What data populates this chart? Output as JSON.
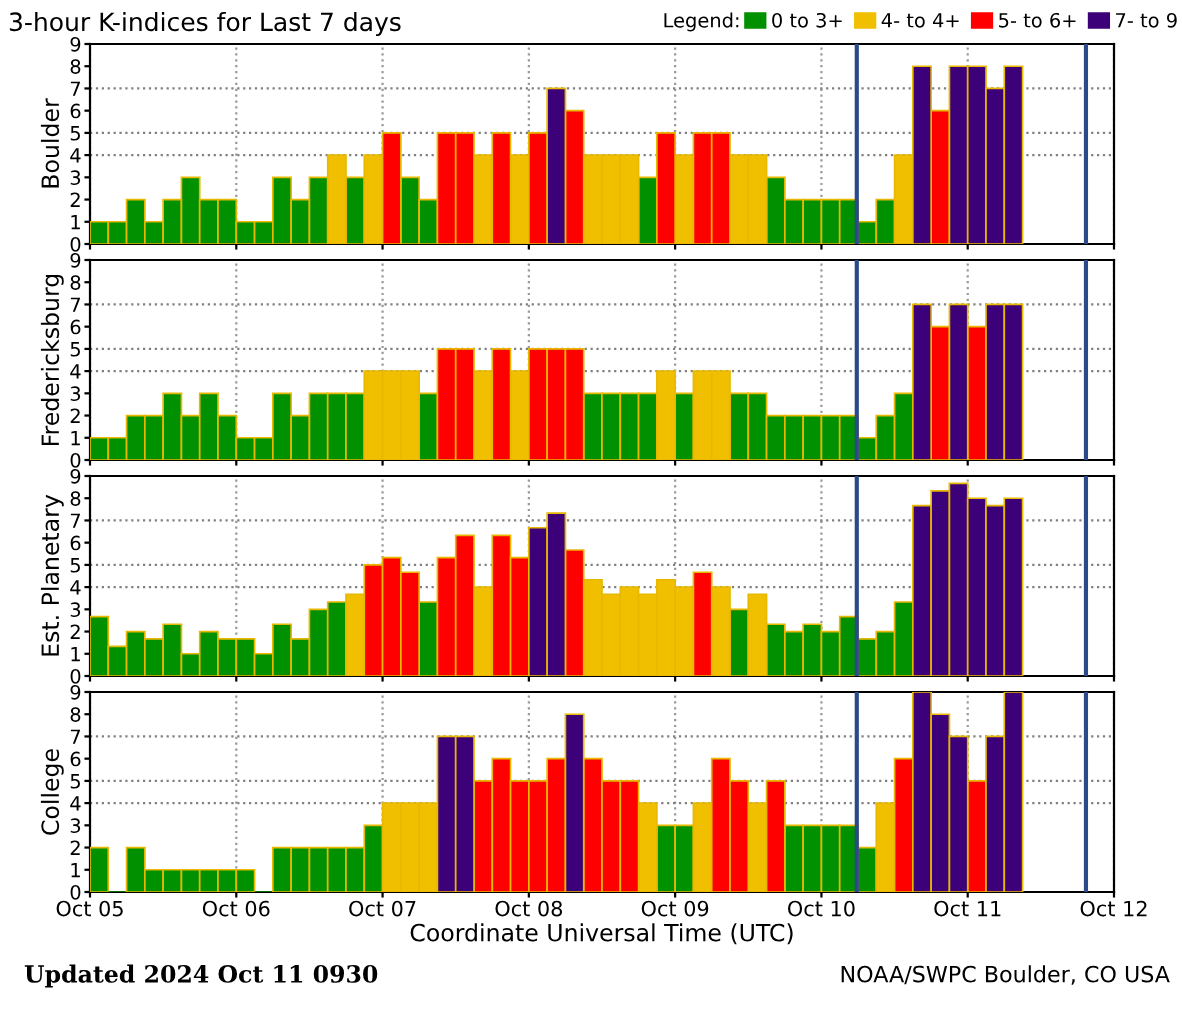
{
  "chart_data": [
    {
      "type": "bar",
      "title": "3-hour K-indices for Last 7 days",
      "ylabel": "Boulder",
      "legend": "top right",
      "legend_title": "Legend:",
      "grid": "x",
      "tick_labels": "y",
      "x": [
        "2024-10-05T01:30",
        "2024-10-05T04:30",
        "2024-10-05T07:30",
        "2024-10-05T10:30",
        "2024-10-05T13:30",
        "2024-10-05T16:30",
        "2024-10-05T19:30",
        "2024-10-05T22:30",
        "2024-10-06T01:30",
        "2024-10-06T04:30",
        "2024-10-06T07:30",
        "2024-10-06T10:30",
        "2024-10-06T13:30",
        "2024-10-06T16:30",
        "2024-10-06T19:30",
        "2024-10-06T22:30",
        "2024-10-07T01:30",
        "2024-10-07T04:30",
        "2024-10-07T07:30",
        "2024-10-07T10:30",
        "2024-10-07T13:30",
        "2024-10-07T16:30",
        "2024-10-07T19:30",
        "2024-10-07T22:30",
        "2024-10-08T01:30",
        "2024-10-08T04:30",
        "2024-10-08T07:30",
        "2024-10-08T10:30",
        "2024-10-08T13:30",
        "2024-10-08T16:30",
        "2024-10-08T19:30",
        "2024-10-08T22:30",
        "2024-10-09T01:30",
        "2024-10-09T04:30",
        "2024-10-09T07:30",
        "2024-10-09T10:30",
        "2024-10-09T13:30",
        "2024-10-09T16:30",
        "2024-10-09T19:30",
        "2024-10-09T22:30",
        "2024-10-10T01:30",
        "2024-10-10T04:30",
        "2024-10-10T07:30",
        "2024-10-10T10:30",
        "2024-10-10T13:30",
        "2024-10-10T16:30",
        "2024-10-10T19:30",
        "2024-10-10T22:30",
        "2024-10-11T01:30",
        "2024-10-11T04:30",
        "2024-10-11T07:30"
      ],
      "xlim": [
        "2024-10-05",
        "2024-10-12"
      ],
      "xticks": [
        {
          "value": "2024-10-05",
          "label": null
        },
        {
          "value": "2024-10-06",
          "label": null
        },
        {
          "value": "2024-10-07",
          "label": null
        },
        {
          "value": "2024-10-08",
          "label": null
        },
        {
          "value": "2024-10-09",
          "label": null
        },
        {
          "value": "2024-10-10",
          "label": null
        },
        {
          "value": "2024-10-11",
          "label": null
        },
        {
          "value": "2024-10-12",
          "label": null
        }
      ],
      "ylim": [
        0,
        9
      ],
      "yticks": [
        0,
        1,
        2,
        3,
        4,
        5,
        6,
        7,
        8,
        9
      ],
      "ref_lines": [
        {
          "axis": "y",
          "value": 4,
          "color": "#808080",
          "line_style": "dotted"
        },
        {
          "axis": "y",
          "value": 5,
          "color": "#808080",
          "line_style": "dotted"
        },
        {
          "axis": "y",
          "value": 7,
          "color": "#808080",
          "line_style": "dotted"
        },
        {
          "axis": "x",
          "value": "2024-10-10T05:48",
          "color": "#2b4a8a",
          "line_style": "solid"
        },
        {
          "axis": "x",
          "value": "2024-10-11T19:24",
          "color": "#2b4a8a",
          "line_style": "solid"
        }
      ],
      "series": [
        {
          "name": "0 to 3+",
          "color": "#009000",
          "values": [
            1,
            1,
            2,
            1,
            2,
            3,
            2,
            2,
            1,
            1,
            3,
            2,
            3,
            null,
            3,
            null,
            null,
            3,
            2,
            null,
            null,
            null,
            null,
            null,
            null,
            null,
            null,
            null,
            null,
            null,
            3,
            null,
            null,
            null,
            null,
            null,
            null,
            3,
            2,
            2,
            2,
            2,
            1,
            2,
            null,
            null,
            null,
            null,
            null,
            null,
            null
          ]
        },
        {
          "name": "4- to 4+",
          "color": "#f0c000",
          "values": [
            null,
            null,
            null,
            null,
            null,
            null,
            null,
            null,
            null,
            null,
            null,
            null,
            null,
            4,
            null,
            4,
            null,
            null,
            null,
            null,
            null,
            4,
            null,
            4,
            null,
            null,
            null,
            4,
            4,
            4,
            null,
            null,
            4,
            null,
            null,
            4,
            4,
            null,
            null,
            null,
            null,
            null,
            null,
            null,
            4,
            null,
            null,
            null,
            null,
            null,
            null
          ]
        },
        {
          "name": "5- to 6+",
          "color": "#ff0000",
          "values": [
            null,
            null,
            null,
            null,
            null,
            null,
            null,
            null,
            null,
            null,
            null,
            null,
            null,
            null,
            null,
            null,
            5,
            null,
            null,
            5,
            5,
            null,
            5,
            null,
            5,
            null,
            6,
            null,
            null,
            null,
            null,
            5,
            null,
            5,
            5,
            null,
            null,
            null,
            null,
            null,
            null,
            null,
            null,
            null,
            null,
            null,
            6,
            null,
            null,
            null,
            null
          ]
        },
        {
          "name": "7- to 9",
          "color": "#3c0078",
          "values": [
            null,
            null,
            null,
            null,
            null,
            null,
            null,
            null,
            null,
            null,
            null,
            null,
            null,
            null,
            null,
            null,
            null,
            null,
            null,
            null,
            null,
            null,
            null,
            null,
            null,
            7,
            null,
            null,
            null,
            null,
            null,
            null,
            null,
            null,
            null,
            null,
            null,
            null,
            null,
            null,
            null,
            null,
            null,
            null,
            null,
            8,
            null,
            8,
            8,
            7,
            8
          ]
        }
      ]
    },
    {
      "type": "bar",
      "ylabel": "Fredericksburg",
      "grid": "x",
      "tick_labels": "y",
      "x": [
        "2024-10-05T01:30",
        "2024-10-05T04:30",
        "2024-10-05T07:30",
        "2024-10-05T10:30",
        "2024-10-05T13:30",
        "2024-10-05T16:30",
        "2024-10-05T19:30",
        "2024-10-05T22:30",
        "2024-10-06T01:30",
        "2024-10-06T04:30",
        "2024-10-06T07:30",
        "2024-10-06T10:30",
        "2024-10-06T13:30",
        "2024-10-06T16:30",
        "2024-10-06T19:30",
        "2024-10-06T22:30",
        "2024-10-07T01:30",
        "2024-10-07T04:30",
        "2024-10-07T07:30",
        "2024-10-07T10:30",
        "2024-10-07T13:30",
        "2024-10-07T16:30",
        "2024-10-07T19:30",
        "2024-10-07T22:30",
        "2024-10-08T01:30",
        "2024-10-08T04:30",
        "2024-10-08T07:30",
        "2024-10-08T10:30",
        "2024-10-08T13:30",
        "2024-10-08T16:30",
        "2024-10-08T19:30",
        "2024-10-08T22:30",
        "2024-10-09T01:30",
        "2024-10-09T04:30",
        "2024-10-09T07:30",
        "2024-10-09T10:30",
        "2024-10-09T13:30",
        "2024-10-09T16:30",
        "2024-10-09T19:30",
        "2024-10-09T22:30",
        "2024-10-10T01:30",
        "2024-10-10T04:30",
        "2024-10-10T07:30",
        "2024-10-10T10:30",
        "2024-10-10T13:30",
        "2024-10-10T16:30",
        "2024-10-10T19:30",
        "2024-10-10T22:30",
        "2024-10-11T01:30",
        "2024-10-11T04:30",
        "2024-10-11T07:30"
      ],
      "xlim": [
        "2024-10-05",
        "2024-10-12"
      ],
      "xticks": [
        {
          "value": "2024-10-05",
          "label": null
        },
        {
          "value": "2024-10-06",
          "label": null
        },
        {
          "value": "2024-10-07",
          "label": null
        },
        {
          "value": "2024-10-08",
          "label": null
        },
        {
          "value": "2024-10-09",
          "label": null
        },
        {
          "value": "2024-10-10",
          "label": null
        },
        {
          "value": "2024-10-11",
          "label": null
        },
        {
          "value": "2024-10-12",
          "label": null
        }
      ],
      "ylim": [
        0,
        9
      ],
      "yticks": [
        0,
        1,
        2,
        3,
        4,
        5,
        6,
        7,
        8,
        9
      ],
      "ref_lines": [
        {
          "axis": "y",
          "value": 4,
          "color": "#808080",
          "line_style": "dotted"
        },
        {
          "axis": "y",
          "value": 5,
          "color": "#808080",
          "line_style": "dotted"
        },
        {
          "axis": "y",
          "value": 7,
          "color": "#808080",
          "line_style": "dotted"
        },
        {
          "axis": "x",
          "value": "2024-10-10T05:48",
          "color": "#2b4a8a",
          "line_style": "solid"
        },
        {
          "axis": "x",
          "value": "2024-10-11T19:24",
          "color": "#2b4a8a",
          "line_style": "solid"
        }
      ],
      "series": [
        {
          "color": "#009000",
          "values": [
            1,
            1,
            2,
            2,
            3,
            2,
            3,
            2,
            1,
            1,
            3,
            2,
            3,
            3,
            3,
            null,
            null,
            null,
            3,
            null,
            null,
            null,
            null,
            null,
            null,
            null,
            null,
            3,
            3,
            3,
            3,
            null,
            3,
            null,
            null,
            3,
            3,
            2,
            2,
            2,
            2,
            2,
            1,
            2,
            3,
            null,
            null,
            null,
            null,
            null,
            null
          ]
        },
        {
          "color": "#f0c000",
          "values": [
            null,
            null,
            null,
            null,
            null,
            null,
            null,
            null,
            null,
            null,
            null,
            null,
            null,
            null,
            null,
            4,
            4,
            4,
            null,
            null,
            null,
            4,
            null,
            4,
            null,
            null,
            null,
            null,
            null,
            null,
            null,
            4,
            null,
            4,
            4,
            null,
            null,
            null,
            null,
            null,
            null,
            null,
            null,
            null,
            null,
            null,
            null,
            null,
            null,
            null,
            null
          ]
        },
        {
          "color": "#ff0000",
          "values": [
            null,
            null,
            null,
            null,
            null,
            null,
            null,
            null,
            null,
            null,
            null,
            null,
            null,
            null,
            null,
            null,
            null,
            null,
            null,
            5,
            5,
            null,
            5,
            null,
            5,
            5,
            5,
            null,
            null,
            null,
            null,
            null,
            null,
            null,
            null,
            null,
            null,
            null,
            null,
            null,
            null,
            null,
            null,
            null,
            null,
            null,
            6,
            null,
            6,
            null,
            null
          ]
        },
        {
          "color": "#3c0078",
          "values": [
            null,
            null,
            null,
            null,
            null,
            null,
            null,
            null,
            null,
            null,
            null,
            null,
            null,
            null,
            null,
            null,
            null,
            null,
            null,
            null,
            null,
            null,
            null,
            null,
            null,
            null,
            null,
            null,
            null,
            null,
            null,
            null,
            null,
            null,
            null,
            null,
            null,
            null,
            null,
            null,
            null,
            null,
            null,
            null,
            null,
            7,
            null,
            7,
            null,
            7,
            7
          ]
        }
      ]
    },
    {
      "type": "bar",
      "ylabel": "Est. Planetary",
      "grid": "x",
      "tick_labels": "y",
      "x": [
        "2024-10-05T01:30",
        "2024-10-05T04:30",
        "2024-10-05T07:30",
        "2024-10-05T10:30",
        "2024-10-05T13:30",
        "2024-10-05T16:30",
        "2024-10-05T19:30",
        "2024-10-05T22:30",
        "2024-10-06T01:30",
        "2024-10-06T04:30",
        "2024-10-06T07:30",
        "2024-10-06T10:30",
        "2024-10-06T13:30",
        "2024-10-06T16:30",
        "2024-10-06T19:30",
        "2024-10-06T22:30",
        "2024-10-07T01:30",
        "2024-10-07T04:30",
        "2024-10-07T07:30",
        "2024-10-07T10:30",
        "2024-10-07T13:30",
        "2024-10-07T16:30",
        "2024-10-07T19:30",
        "2024-10-07T22:30",
        "2024-10-08T01:30",
        "2024-10-08T04:30",
        "2024-10-08T07:30",
        "2024-10-08T10:30",
        "2024-10-08T13:30",
        "2024-10-08T16:30",
        "2024-10-08T19:30",
        "2024-10-08T22:30",
        "2024-10-09T01:30",
        "2024-10-09T04:30",
        "2024-10-09T07:30",
        "2024-10-09T10:30",
        "2024-10-09T13:30",
        "2024-10-09T16:30",
        "2024-10-09T19:30",
        "2024-10-09T22:30",
        "2024-10-10T01:30",
        "2024-10-10T04:30",
        "2024-10-10T07:30",
        "2024-10-10T10:30",
        "2024-10-10T13:30",
        "2024-10-10T16:30",
        "2024-10-10T19:30",
        "2024-10-10T22:30",
        "2024-10-11T01:30",
        "2024-10-11T04:30",
        "2024-10-11T07:30"
      ],
      "xlim": [
        "2024-10-05",
        "2024-10-12"
      ],
      "xticks": [
        {
          "value": "2024-10-05",
          "label": null
        },
        {
          "value": "2024-10-06",
          "label": null
        },
        {
          "value": "2024-10-07",
          "label": null
        },
        {
          "value": "2024-10-08",
          "label": null
        },
        {
          "value": "2024-10-09",
          "label": null
        },
        {
          "value": "2024-10-10",
          "label": null
        },
        {
          "value": "2024-10-11",
          "label": null
        },
        {
          "value": "2024-10-12",
          "label": null
        }
      ],
      "ylim": [
        0,
        9
      ],
      "yticks": [
        0,
        1,
        2,
        3,
        4,
        5,
        6,
        7,
        8,
        9
      ],
      "ref_lines": [
        {
          "axis": "y",
          "value": 4,
          "color": "#808080",
          "line_style": "dotted"
        },
        {
          "axis": "y",
          "value": 5,
          "color": "#808080",
          "line_style": "dotted"
        },
        {
          "axis": "y",
          "value": 7,
          "color": "#808080",
          "line_style": "dotted"
        },
        {
          "axis": "x",
          "value": "2024-10-10T05:48",
          "color": "#2b4a8a",
          "line_style": "solid"
        },
        {
          "axis": "x",
          "value": "2024-10-11T19:24",
          "color": "#2b4a8a",
          "line_style": "solid"
        }
      ],
      "series": [
        {
          "color": "#009000",
          "values": [
            2.67,
            1.33,
            2,
            1.67,
            2.33,
            1,
            2,
            1.67,
            1.67,
            1,
            2.33,
            1.67,
            3,
            3.33,
            null,
            null,
            null,
            null,
            3.33,
            null,
            null,
            null,
            null,
            null,
            null,
            null,
            null,
            null,
            null,
            null,
            null,
            null,
            null,
            null,
            null,
            3,
            null,
            2.33,
            2,
            2.33,
            2,
            2.67,
            1.67,
            2,
            3.33,
            null,
            null,
            null,
            null,
            null,
            null
          ]
        },
        {
          "color": "#f0c000",
          "values": [
            null,
            null,
            null,
            null,
            null,
            null,
            null,
            null,
            null,
            null,
            null,
            null,
            null,
            null,
            3.67,
            null,
            null,
            null,
            null,
            null,
            null,
            4,
            null,
            null,
            null,
            null,
            null,
            4.33,
            3.67,
            4,
            3.67,
            4.33,
            4,
            null,
            4,
            null,
            3.67,
            null,
            null,
            null,
            null,
            null,
            null,
            null,
            null,
            null,
            null,
            null,
            null,
            null,
            null
          ]
        },
        {
          "color": "#ff0000",
          "values": [
            null,
            null,
            null,
            null,
            null,
            null,
            null,
            null,
            null,
            null,
            null,
            null,
            null,
            null,
            null,
            5,
            5.33,
            4.67,
            null,
            5.33,
            6.33,
            null,
            6.33,
            5.33,
            null,
            null,
            5.67,
            null,
            null,
            null,
            null,
            null,
            null,
            4.67,
            null,
            null,
            null,
            null,
            null,
            null,
            null,
            null,
            null,
            null,
            null,
            null,
            null,
            null,
            null,
            null,
            null
          ]
        },
        {
          "color": "#3c0078",
          "values": [
            null,
            null,
            null,
            null,
            null,
            null,
            null,
            null,
            null,
            null,
            null,
            null,
            null,
            null,
            null,
            null,
            null,
            null,
            null,
            null,
            null,
            null,
            null,
            null,
            6.67,
            7.33,
            null,
            null,
            null,
            null,
            null,
            null,
            null,
            null,
            null,
            null,
            null,
            null,
            null,
            null,
            null,
            null,
            null,
            null,
            null,
            7.67,
            8.33,
            8.67,
            8,
            7.67,
            8
          ]
        }
      ]
    },
    {
      "type": "bar",
      "ylabel": "College",
      "xlabel": "Coordinate Universal Time (UTC)",
      "grid": "x",
      "annotations": [
        "Updated 2024 Oct 11 0930",
        "NOAA/SWPC Boulder, CO USA"
      ],
      "x": [
        "2024-10-05T01:30",
        "2024-10-05T04:30",
        "2024-10-05T07:30",
        "2024-10-05T10:30",
        "2024-10-05T13:30",
        "2024-10-05T16:30",
        "2024-10-05T19:30",
        "2024-10-05T22:30",
        "2024-10-06T01:30",
        "2024-10-06T04:30",
        "2024-10-06T07:30",
        "2024-10-06T10:30",
        "2024-10-06T13:30",
        "2024-10-06T16:30",
        "2024-10-06T19:30",
        "2024-10-06T22:30",
        "2024-10-07T01:30",
        "2024-10-07T04:30",
        "2024-10-07T07:30",
        "2024-10-07T10:30",
        "2024-10-07T13:30",
        "2024-10-07T16:30",
        "2024-10-07T19:30",
        "2024-10-07T22:30",
        "2024-10-08T01:30",
        "2024-10-08T04:30",
        "2024-10-08T07:30",
        "2024-10-08T10:30",
        "2024-10-08T13:30",
        "2024-10-08T16:30",
        "2024-10-08T19:30",
        "2024-10-08T22:30",
        "2024-10-09T01:30",
        "2024-10-09T04:30",
        "2024-10-09T07:30",
        "2024-10-09T10:30",
        "2024-10-09T13:30",
        "2024-10-09T16:30",
        "2024-10-09T19:30",
        "2024-10-09T22:30",
        "2024-10-10T01:30",
        "2024-10-10T04:30",
        "2024-10-10T07:30",
        "2024-10-10T10:30",
        "2024-10-10T13:30",
        "2024-10-10T16:30",
        "2024-10-10T19:30",
        "2024-10-10T22:30",
        "2024-10-11T01:30",
        "2024-10-11T04:30",
        "2024-10-11T07:30"
      ],
      "xlim": [
        "2024-10-05",
        "2024-10-12"
      ],
      "xticks": [
        {
          "value": "2024-10-05",
          "label": "Oct 05"
        },
        {
          "value": "2024-10-06",
          "label": "Oct 06"
        },
        {
          "value": "2024-10-07",
          "label": "Oct 07"
        },
        {
          "value": "2024-10-08",
          "label": "Oct 08"
        },
        {
          "value": "2024-10-09",
          "label": "Oct 09"
        },
        {
          "value": "2024-10-10",
          "label": "Oct 10"
        },
        {
          "value": "2024-10-11",
          "label": "Oct 11"
        },
        {
          "value": "2024-10-12",
          "label": "Oct 12"
        }
      ],
      "ylim": [
        0,
        9
      ],
      "yticks": [
        0,
        1,
        2,
        3,
        4,
        5,
        6,
        7,
        8,
        9
      ],
      "ref_lines": [
        {
          "axis": "y",
          "value": 4,
          "color": "#808080",
          "line_style": "dotted"
        },
        {
          "axis": "y",
          "value": 5,
          "color": "#808080",
          "line_style": "dotted"
        },
        {
          "axis": "y",
          "value": 7,
          "color": "#808080",
          "line_style": "dotted"
        },
        {
          "axis": "x",
          "value": "2024-10-10T05:48",
          "color": "#2b4a8a",
          "line_style": "solid"
        },
        {
          "axis": "x",
          "value": "2024-10-11T19:24",
          "color": "#2b4a8a",
          "line_style": "solid"
        }
      ],
      "series": [
        {
          "color": "#009000",
          "values": [
            2,
            0,
            2,
            1,
            1,
            1,
            1,
            1,
            1,
            0,
            2,
            2,
            2,
            2,
            2,
            3,
            null,
            null,
            null,
            null,
            null,
            null,
            null,
            null,
            null,
            null,
            null,
            null,
            null,
            null,
            null,
            3,
            3,
            null,
            null,
            null,
            null,
            null,
            3,
            3,
            3,
            3,
            2,
            null,
            null,
            null,
            null,
            null,
            null,
            null,
            null
          ]
        },
        {
          "color": "#f0c000",
          "values": [
            null,
            null,
            null,
            null,
            null,
            null,
            null,
            null,
            null,
            null,
            null,
            null,
            null,
            null,
            null,
            null,
            4,
            4,
            4,
            null,
            null,
            null,
            null,
            null,
            null,
            null,
            null,
            null,
            null,
            null,
            4,
            null,
            null,
            4,
            null,
            null,
            4,
            null,
            null,
            null,
            null,
            null,
            null,
            4,
            null,
            null,
            null,
            null,
            null,
            null,
            null
          ]
        },
        {
          "color": "#ff0000",
          "values": [
            null,
            null,
            null,
            null,
            null,
            null,
            null,
            null,
            null,
            null,
            null,
            null,
            null,
            null,
            null,
            null,
            null,
            null,
            null,
            null,
            null,
            5,
            6,
            5,
            5,
            6,
            null,
            6,
            5,
            5,
            null,
            null,
            null,
            null,
            6,
            5,
            null,
            5,
            null,
            null,
            null,
            null,
            null,
            null,
            6,
            null,
            null,
            null,
            5,
            null,
            null
          ]
        },
        {
          "color": "#3c0078",
          "values": [
            null,
            null,
            null,
            null,
            null,
            null,
            null,
            null,
            null,
            null,
            null,
            null,
            null,
            null,
            null,
            null,
            null,
            null,
            null,
            7,
            7,
            null,
            null,
            null,
            null,
            null,
            8,
            null,
            null,
            null,
            null,
            null,
            null,
            null,
            null,
            null,
            null,
            null,
            null,
            null,
            null,
            null,
            null,
            null,
            null,
            9,
            8,
            7,
            null,
            7,
            9
          ]
        }
      ]
    }
  ]
}
